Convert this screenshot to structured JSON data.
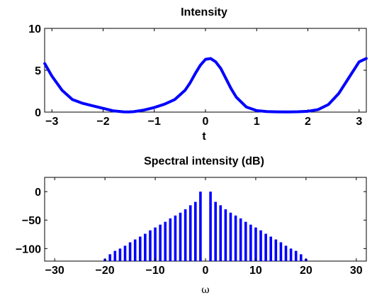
{
  "chart_data": [
    {
      "type": "line",
      "title": "Intensity",
      "xlabel": "t",
      "ylabel": "",
      "xlim": [
        -3.14159,
        3.14159
      ],
      "ylim": [
        0,
        10
      ],
      "xticks": [
        -3,
        -2,
        -1,
        0,
        1,
        2,
        3
      ],
      "xtick_labels": [
        "-3",
        "-2",
        "-1",
        "0",
        "1",
        "2",
        "3"
      ],
      "yticks": [
        0,
        5,
        10
      ],
      "ytick_labels": [
        "0",
        "5",
        "10"
      ],
      "grid": false,
      "color": "#0000ff",
      "series": [
        {
          "x": [
            -3.14,
            -3.0,
            -2.8,
            -2.6,
            -2.4,
            -2.2,
            -2.0,
            -1.8,
            -1.6,
            -1.5,
            -1.4,
            -1.2,
            -1.0,
            -0.8,
            -0.6,
            -0.4,
            -0.3,
            -0.2,
            -0.1,
            0.0,
            0.1,
            0.2,
            0.3,
            0.4,
            0.5,
            0.6,
            0.8,
            1.0,
            1.2,
            1.4,
            1.6,
            1.8,
            2.0,
            2.2,
            2.4,
            2.6,
            2.8,
            3.0,
            3.14
          ],
          "y": [
            5.8,
            4.3,
            2.6,
            1.5,
            1.05,
            0.75,
            0.45,
            0.15,
            0.03,
            0.02,
            0.05,
            0.25,
            0.55,
            0.95,
            1.5,
            2.6,
            3.5,
            4.6,
            5.6,
            6.3,
            6.4,
            6.0,
            5.2,
            4.0,
            2.8,
            1.8,
            0.6,
            0.18,
            0.06,
            0.03,
            0.02,
            0.04,
            0.1,
            0.3,
            0.9,
            2.2,
            4.1,
            6.0,
            6.4
          ]
        }
      ]
    },
    {
      "type": "bar",
      "title": "Spectral intensity (dB)",
      "xlabel": "ω",
      "ylabel": "",
      "xlim": [
        -32,
        32
      ],
      "ylim": [
        -122,
        25
      ],
      "xticks": [
        -30,
        -20,
        -10,
        0,
        10,
        20,
        30
      ],
      "xtick_labels": [
        "-30",
        "-20",
        "-10",
        "0",
        "10",
        "20",
        "30"
      ],
      "yticks": [
        0,
        -50,
        -100
      ],
      "ytick_labels": [
        "0",
        "-50",
        "-100"
      ],
      "grid": false,
      "color": "#0000ff",
      "x": [
        -21,
        -20,
        -19,
        -18,
        -17,
        -16,
        -15,
        -14,
        -13,
        -12,
        -11,
        -10,
        -9,
        -8,
        -7,
        -6,
        -5,
        -4,
        -3,
        -2,
        -1,
        1,
        2,
        3,
        4,
        5,
        6,
        7,
        8,
        9,
        10,
        11,
        12,
        13,
        14,
        15,
        16,
        17,
        18,
        19,
        20,
        21
      ],
      "values": [
        -122,
        -118,
        -110,
        -104,
        -100,
        -95,
        -89,
        -84,
        -79,
        -74,
        -68,
        -63,
        -58,
        -53,
        -47,
        -42,
        -37,
        -31,
        -24,
        -18,
        0,
        0,
        -18,
        -24,
        -31,
        -37,
        -42,
        -47,
        -53,
        -58,
        -63,
        -68,
        -74,
        -79,
        -84,
        -89,
        -95,
        -100,
        -104,
        -110,
        -118,
        -122
      ]
    }
  ]
}
